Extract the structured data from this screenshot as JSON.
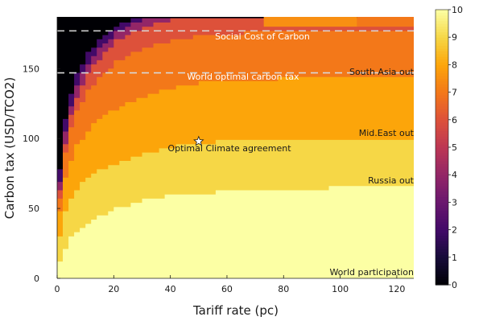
{
  "chart_data": {
    "type": "heatmap",
    "xlabel": "Tariff rate (pc)",
    "ylabel": "Carbon tax (USD/TCO2)",
    "xlim": [
      0,
      126
    ],
    "ylim": [
      0,
      187
    ],
    "x_ticks": [
      0,
      20,
      40,
      60,
      80,
      100,
      120
    ],
    "y_ticks": [
      0,
      50,
      100,
      150
    ],
    "colorbar": {
      "range": [
        0,
        10
      ],
      "ticks": [
        0,
        1,
        2,
        3,
        4,
        5,
        6,
        7,
        8,
        9,
        10
      ],
      "colormap": "inferno",
      "stops": [
        "#000004",
        "#160b39",
        "#420a68",
        "#6a176e",
        "#932667",
        "#bc3754",
        "#dd513a",
        "#f37819",
        "#fca50a",
        "#f6d746",
        "#fcffa4"
      ]
    },
    "level_boundaries": [
      {
        "region_below": 10,
        "upper_carbon_tax": [
          12,
          22,
          32,
          40,
          45,
          50,
          53,
          56,
          58,
          59,
          60,
          61,
          62,
          63,
          64,
          65,
          65
        ]
      },
      {
        "region_below": 9,
        "upper_carbon_tax": [
          30,
          48,
          62,
          72,
          78,
          82,
          86,
          89,
          92,
          94,
          96,
          97,
          98,
          99,
          99,
          100,
          100
        ]
      },
      {
        "region_below": 8,
        "upper_carbon_tax": [
          48,
          72,
          92,
          106,
          115,
          121,
          126,
          130,
          133,
          136,
          138,
          140,
          141,
          142,
          143,
          143,
          144
        ]
      },
      {
        "region_below": 7,
        "upper_carbon_tax": [
          58,
          90,
          116,
          134,
          146,
          155,
          161,
          165,
          168,
          170,
          172,
          174,
          175,
          176,
          177,
          177,
          178
        ]
      },
      {
        "region_below": 6,
        "upper_carbon_tax": [
          62,
          97,
          126,
          146,
          160,
          170,
          176,
          180,
          183,
          185,
          186,
          187,
          187,
          187,
          187,
          187,
          187
        ]
      },
      {
        "region_below": 4,
        "upper_carbon_tax": [
          70,
          105,
          134,
          154,
          167,
          176,
          181,
          185,
          187,
          187,
          187,
          187,
          187,
          187,
          187,
          187,
          187
        ]
      },
      {
        "region_below": 2,
        "upper_carbon_tax": [
          78,
          113,
          142,
          161,
          173,
          181,
          185,
          187,
          187,
          187,
          187,
          187,
          187,
          187,
          187,
          187,
          187
        ]
      }
    ],
    "boundary_x": [
      0,
      2,
      5,
      10,
      15,
      20,
      25,
      30,
      35,
      40,
      45,
      50,
      60,
      70,
      85,
      105,
      126
    ],
    "top_right_cells": [
      {
        "x_range": [
          73,
          106
        ],
        "y_range": [
          180,
          187
        ],
        "value": 7.5
      },
      {
        "x_range": [
          106,
          126
        ],
        "y_range": [
          180,
          187
        ],
        "value": 7.0
      }
    ],
    "hlines": [
      {
        "y": 177,
        "label": "Social Cost of Carbon"
      },
      {
        "y": 147,
        "label": "World optimal carbon tax"
      }
    ],
    "marker": {
      "x": 50,
      "y": 98,
      "label": "Optimal Climate agreement"
    },
    "region_labels": [
      "South Asia out",
      "Mid.East out",
      "Russia out",
      "World participation"
    ]
  }
}
